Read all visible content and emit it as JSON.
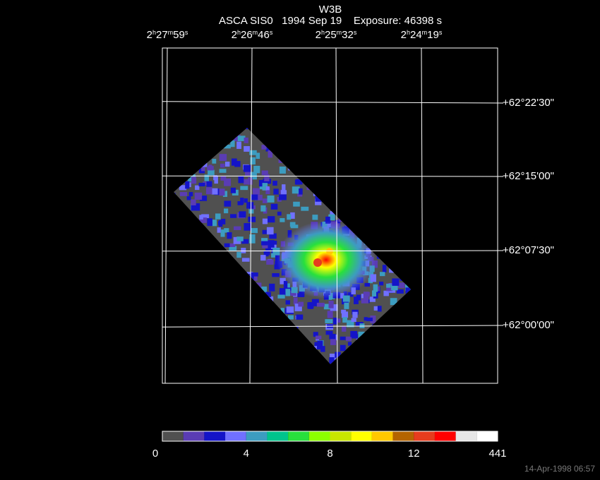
{
  "title": "W3B",
  "subtitle": "ASCA SIS0   1994 Sep 19    Exposure: 46398 s",
  "ra_labels": [
    [
      "2",
      "h",
      "27",
      "m",
      "59",
      "s"
    ],
    [
      "2",
      "h",
      "26",
      "m",
      "46",
      "s"
    ],
    [
      "2",
      "h",
      "25",
      "m",
      "32",
      "s"
    ],
    [
      "2",
      "h",
      "24",
      "m",
      "19",
      "s"
    ]
  ],
  "dec_labels": [
    "+62°22'30\"",
    "+62°15'00\"",
    "+62°07'30\"",
    "+62°00'00\""
  ],
  "colorbar": {
    "colors": [
      "#505050",
      "#5a3cb4",
      "#1414c8",
      "#7070ff",
      "#3c9cc0",
      "#00c48c",
      "#28e03c",
      "#8cff00",
      "#c8e600",
      "#ffff00",
      "#ffc800",
      "#b46400",
      "#e63c1e",
      "#ff0000",
      "#e6e6e6",
      "#ffffff"
    ],
    "labels": [
      "0",
      "4",
      "8",
      "12",
      "441"
    ]
  },
  "timestamp": "14-Apr-1998 06:57"
}
